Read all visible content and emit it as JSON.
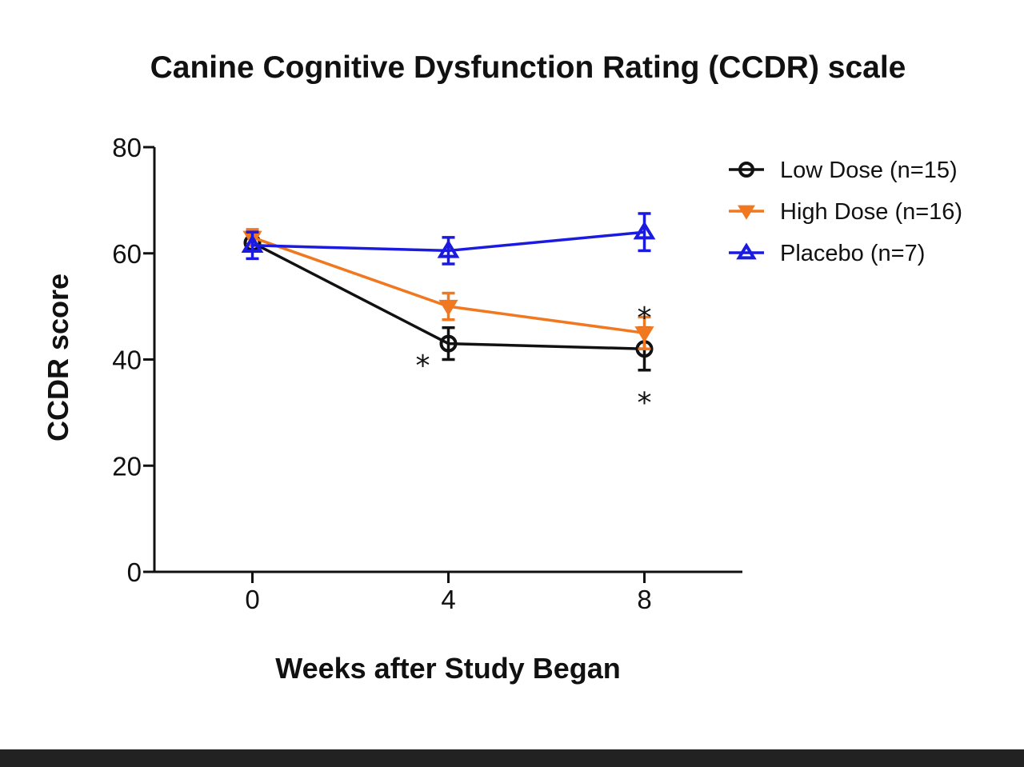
{
  "chart_data": {
    "type": "line",
    "title": "Canine Cognitive Dysfunction Rating (CCDR) scale",
    "xlabel": "Weeks after Study Began",
    "ylabel": "CCDR score",
    "x": [
      0,
      4,
      8
    ],
    "xlim": [
      -2,
      10
    ],
    "ylim": [
      0,
      80
    ],
    "yticks": [
      0,
      20,
      40,
      60,
      80
    ],
    "xticks": [
      0,
      4,
      8
    ],
    "legend_position": "top-right",
    "series": [
      {
        "name": "Low Dose (n=15)",
        "marker": "circle-open",
        "color": "#111111",
        "values": [
          62,
          43,
          42
        ],
        "err": [
          1.5,
          3,
          4
        ]
      },
      {
        "name": "High Dose (n=16)",
        "marker": "triangle-down",
        "color": "#f07820",
        "values": [
          63,
          50,
          45
        ],
        "err": [
          1.5,
          2.5,
          3
        ]
      },
      {
        "name": "Placebo (n=7)",
        "marker": "triangle-up-open",
        "color": "#1a1ae0",
        "values": [
          61.5,
          60.5,
          64
        ],
        "err": [
          2.5,
          2.5,
          3.5
        ]
      }
    ],
    "annotations": [
      {
        "text": "*",
        "x": 4,
        "y": 41,
        "placement": "left"
      },
      {
        "text": "*",
        "x": 8,
        "y": 50,
        "placement": "above"
      },
      {
        "text": "*",
        "x": 8,
        "y": 34,
        "placement": "below"
      }
    ]
  }
}
